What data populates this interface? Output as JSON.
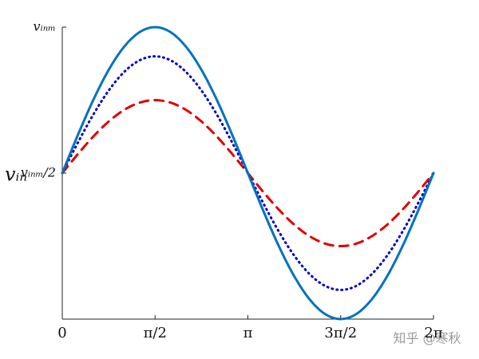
{
  "chart_data": {
    "type": "line",
    "y_label": "vᵢₙ",
    "x": [
      0,
      0.2618,
      0.5236,
      0.7854,
      1.0472,
      1.309,
      1.5708,
      1.8326,
      2.0944,
      2.3562,
      2.618,
      2.8798,
      3.1416,
      3.4034,
      3.6652,
      3.927,
      4.1888,
      4.4506,
      4.7124,
      4.9742,
      5.236,
      5.4978,
      5.7596,
      6.0214,
      6.2832
    ],
    "series": [
      {
        "color": "#0072bd",
        "style": "solid",
        "values": [
          0.5,
          0.6294,
          0.75,
          0.8536,
          0.933,
          0.983,
          1,
          0.983,
          0.933,
          0.8536,
          0.75,
          0.6294,
          0.5,
          0.3706,
          0.25,
          0.1464,
          0.067,
          0.017,
          0,
          0.017,
          0.067,
          0.1464,
          0.25,
          0.3706,
          0.5
        ]
      },
      {
        "color": "#0000cc",
        "style": "dotted",
        "values": [
          0.5,
          0.6035,
          0.7,
          0.7828,
          0.8464,
          0.8864,
          0.9,
          0.8864,
          0.8464,
          0.7828,
          0.7,
          0.6035,
          0.5,
          0.3965,
          0.3,
          0.2172,
          0.1536,
          0.1136,
          0.1,
          0.1136,
          0.1536,
          0.2172,
          0.3,
          0.3965,
          0.5
        ]
      },
      {
        "color": "#e00000",
        "style": "dashed",
        "values": [
          0.5,
          0.5647,
          0.625,
          0.6768,
          0.7165,
          0.7415,
          0.75,
          0.7415,
          0.7165,
          0.6768,
          0.625,
          0.5647,
          0.5,
          0.4353,
          0.375,
          0.3232,
          0.2835,
          0.2585,
          0.25,
          0.2585,
          0.2835,
          0.3232,
          0.375,
          0.4353,
          0.5
        ]
      }
    ],
    "xlim": [
      0,
      6.2832
    ],
    "xticks": [
      0,
      {
        "value": 1.5708,
        "label": "π/2"
      },
      {
        "value": 3.1416,
        "label": "π"
      },
      {
        "value": 4.7124,
        "label": "3π/2"
      },
      {
        "value": 6.2832,
        "label": "2π"
      }
    ],
    "ylim": [
      0,
      1
    ],
    "yticks": [
      {
        "value": 0.5,
        "label": "vᵢₙₘ/2"
      },
      {
        "value": 1,
        "label": "vᵢₙₘ"
      }
    ],
    "watermark": "知乎 @寒秋"
  }
}
